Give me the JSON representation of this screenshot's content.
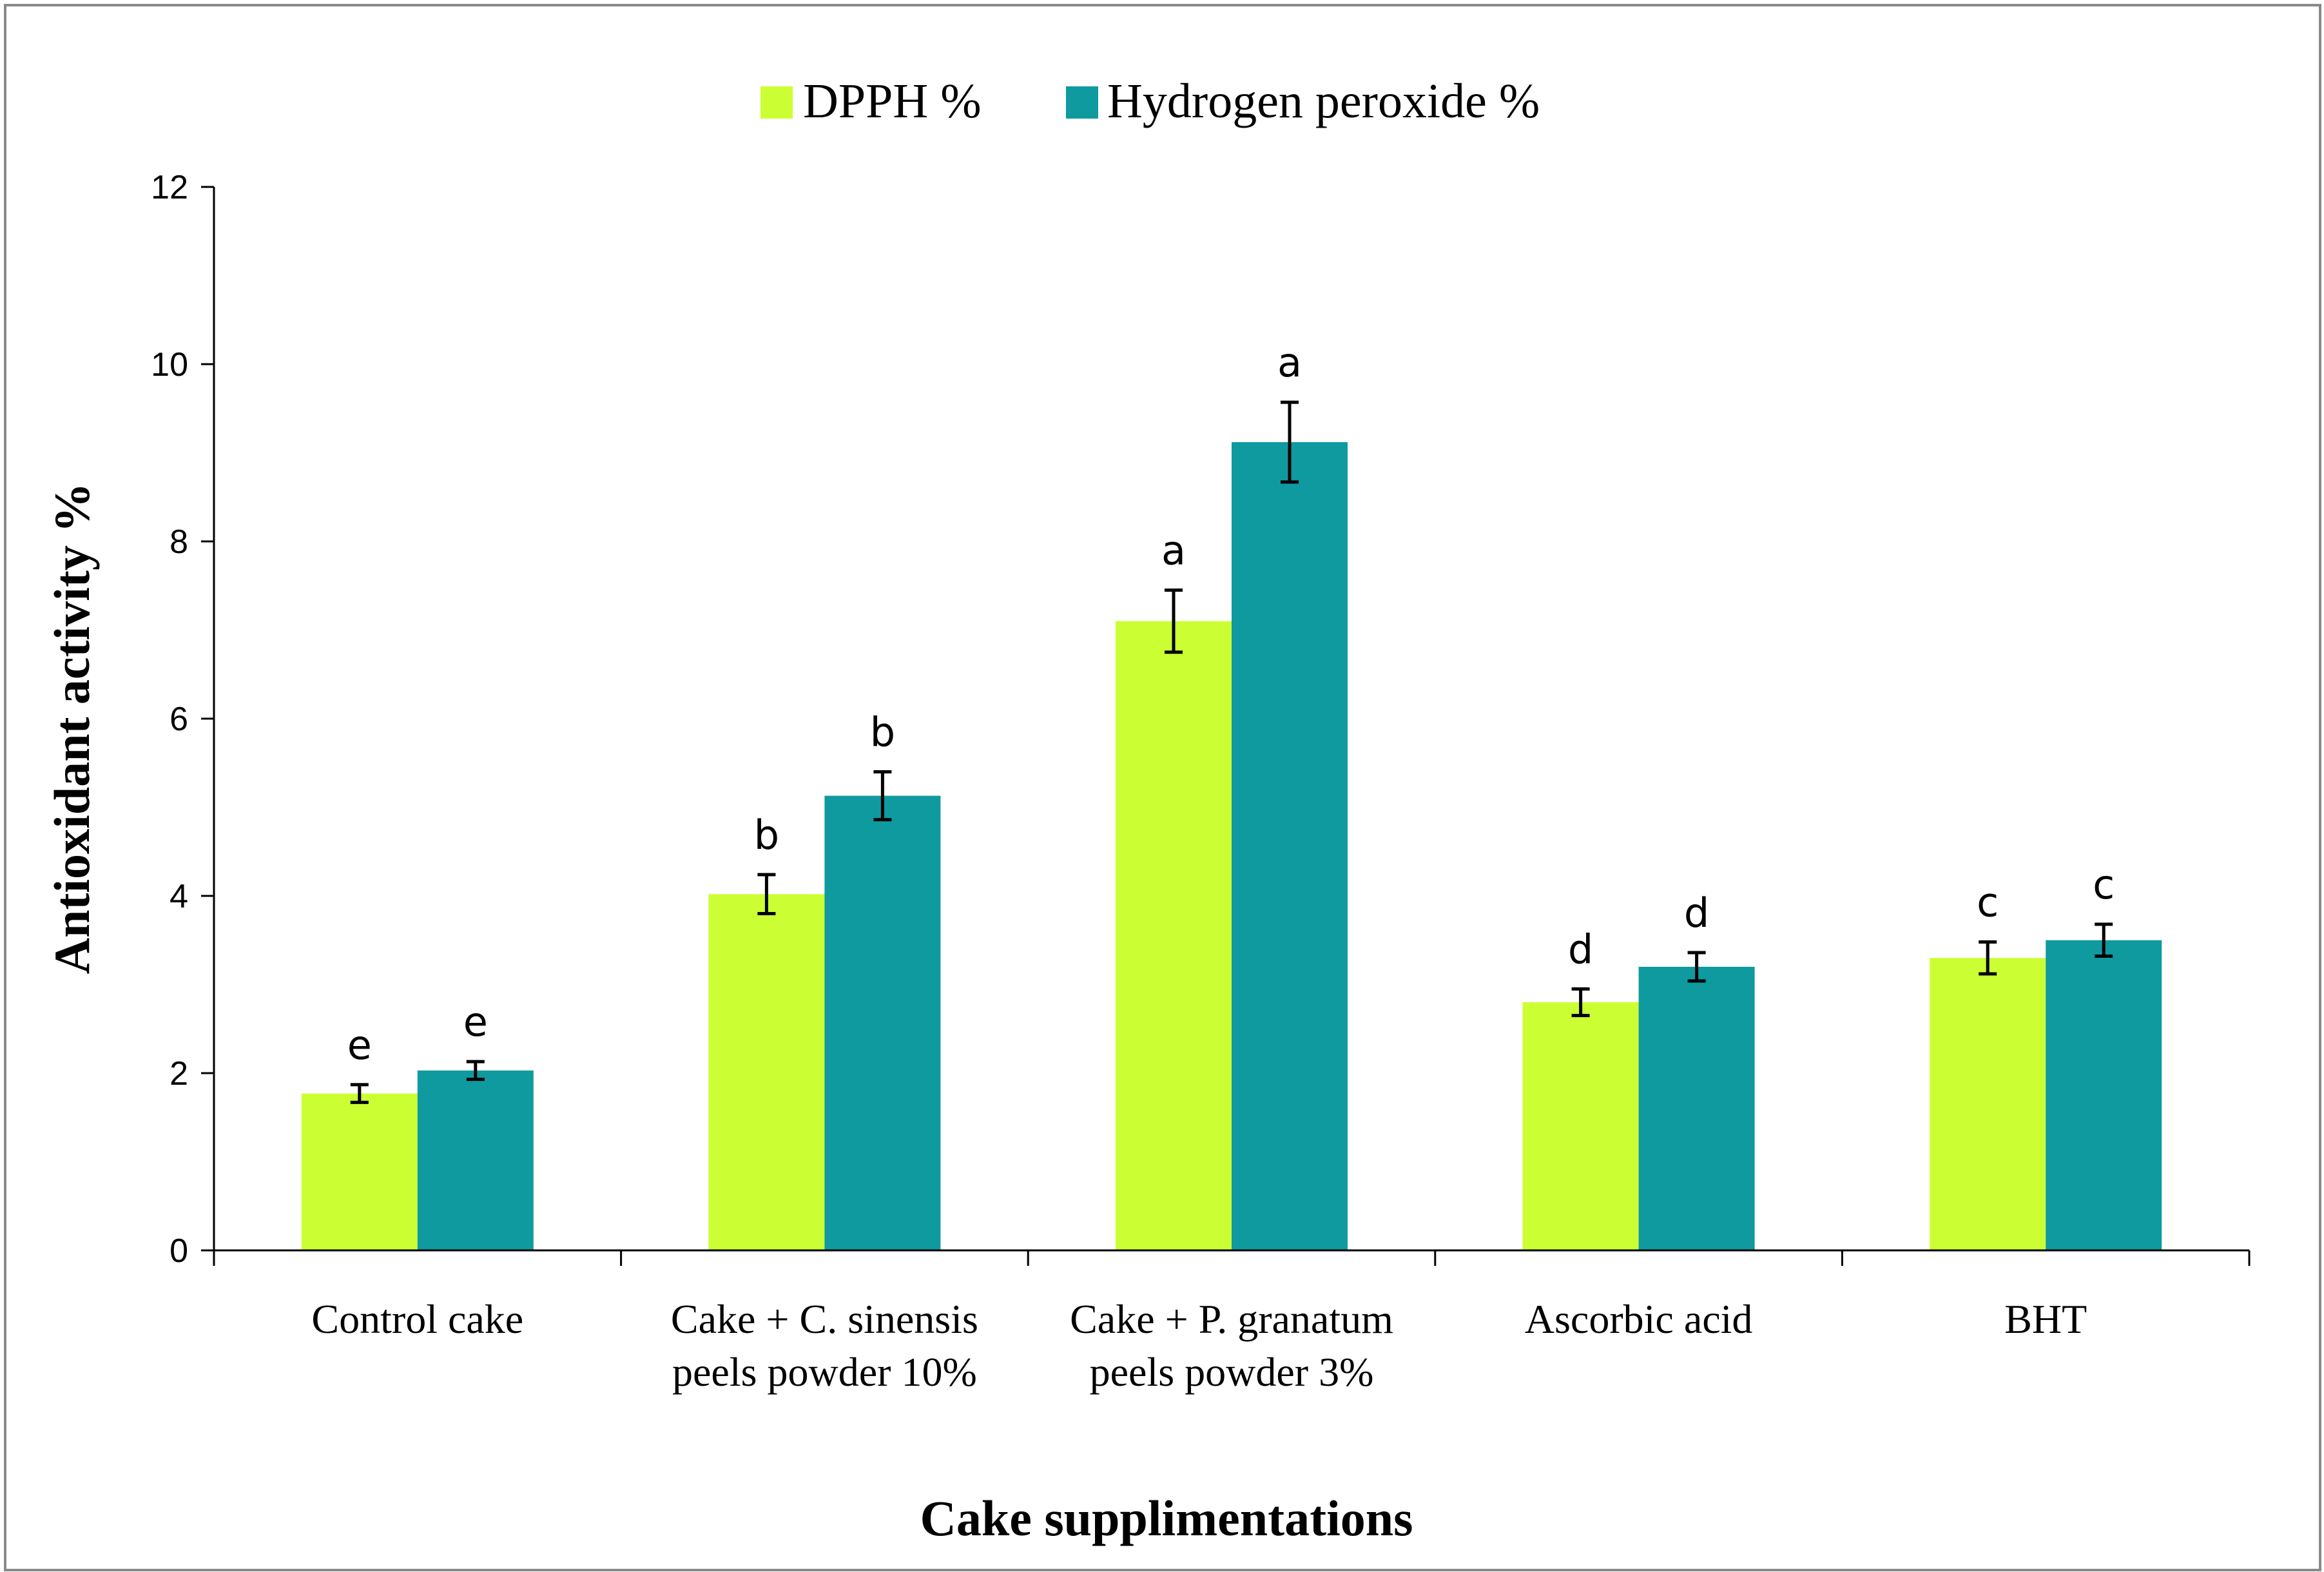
{
  "chart_data": {
    "type": "bar",
    "title": "",
    "xlabel": "Cake supplimentations",
    "ylabel": "Antioxidant activity %",
    "ylim": [
      0,
      12
    ],
    "yticks": [
      0,
      2,
      4,
      6,
      8,
      10,
      12
    ],
    "grid": false,
    "legend_position": "top-center",
    "categories": [
      [
        "Control cake"
      ],
      [
        "Cake + C. sinensis",
        "peels powder 10%"
      ],
      [
        "Cake + P. granatum",
        "peels powder 3%"
      ],
      [
        "Ascorbic acid"
      ],
      [
        "BHT"
      ]
    ],
    "series": [
      {
        "name": "DPPH %",
        "color": "#ccff33",
        "values": [
          1.77,
          4.02,
          7.1,
          2.8,
          3.3
        ],
        "errors": [
          0.1,
          0.22,
          0.35,
          0.15,
          0.18
        ],
        "letters": [
          "e",
          "b",
          "a",
          "d",
          "c"
        ]
      },
      {
        "name": "Hydrogen peroxide %",
        "color": "#0f9aa0",
        "values": [
          2.03,
          5.13,
          9.12,
          3.2,
          3.5
        ],
        "errors": [
          0.1,
          0.27,
          0.45,
          0.16,
          0.18
        ],
        "letters": [
          "e",
          "b",
          "a",
          "d",
          "c"
        ]
      }
    ]
  }
}
